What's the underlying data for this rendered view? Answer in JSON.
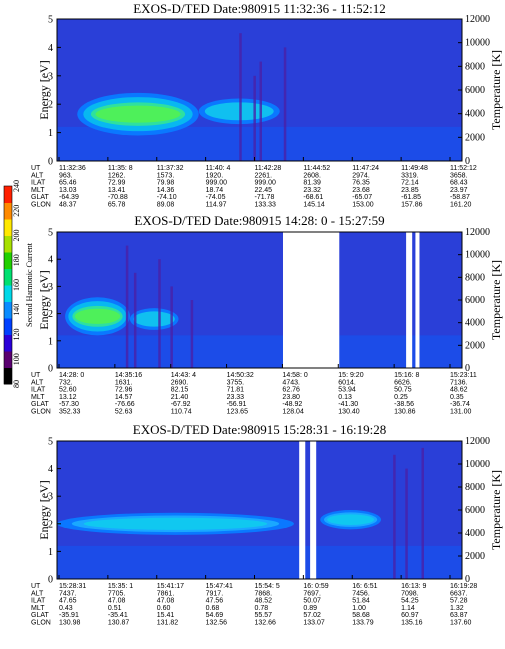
{
  "colorbar": {
    "label": "Second Harmonic Current",
    "ticks": [
      "80",
      "100",
      "120",
      "140",
      "160",
      "180",
      "200",
      "220",
      "240"
    ],
    "colors": [
      "#000000",
      "#5a0070",
      "#2a00d8",
      "#0040ff",
      "#0a8cff",
      "#00d8e8",
      "#00e070",
      "#20d000",
      "#a8e000",
      "#ffe800",
      "#ff8a00",
      "#ff2000"
    ]
  },
  "table_labels": [
    "UT",
    "ALT",
    "ILAT",
    "MLT",
    "GLAT",
    "GLON"
  ],
  "chart_data": [
    {
      "type": "heatmap",
      "title": "EXOS-D/TED Date:980915 11:32:36 - 11:52:12",
      "ylabel": "Energy [eV]",
      "y2label": "Temperature [K]",
      "ylim": [
        0,
        5
      ],
      "y2lim": [
        0,
        12000
      ],
      "yticks": [
        "0",
        "1",
        "2",
        "3",
        "4",
        "5"
      ],
      "y2ticks": [
        "0",
        "2000",
        "4000",
        "6000",
        "8000",
        "10000",
        "12000"
      ],
      "columns": [
        [
          "11:32:36",
          "963.",
          "65.46",
          "13.03",
          "-64.39",
          "48.37"
        ],
        [
          "11:35: 8",
          "1262.",
          "72.99",
          "13.41",
          "-70.88",
          "65.78"
        ],
        [
          "11:37:32",
          "1573.",
          "79.98",
          "14.36",
          "-74.10",
          "89.08"
        ],
        [
          "11:40: 4",
          "1920.",
          "999.00",
          "18.74",
          "-74.05",
          "114.97"
        ],
        [
          "11:42:28",
          "2261.",
          "999.00",
          "22.45",
          "-71.78",
          "133.33"
        ],
        [
          "11:44:52",
          "2608.",
          "81.39",
          "23.32",
          "-68.61",
          "145.14"
        ],
        [
          "11:47:24",
          "2974.",
          "76.35",
          "23.68",
          "-65.07",
          "153.00"
        ],
        [
          "11:49:48",
          "3319.",
          "72.14",
          "23.85",
          "-61.85",
          "157.86"
        ],
        [
          "11:52:12",
          "3658.",
          "68.43",
          "23.97",
          "-58.87",
          "161.20"
        ]
      ]
    },
    {
      "type": "heatmap",
      "title": "EXOS-D/TED Date:980915 14:28: 0 - 15:27:59",
      "ylabel": "Energy [eV]",
      "y2label": "Temperature [K]",
      "ylim": [
        0,
        5
      ],
      "y2lim": [
        0,
        12000
      ],
      "yticks": [
        "0",
        "1",
        "2",
        "3",
        "4",
        "5"
      ],
      "y2ticks": [
        "0",
        "2000",
        "4000",
        "6000",
        "8000",
        "10000",
        "12000"
      ],
      "columns": [
        [
          "14:28: 0",
          "732.",
          "52.60",
          "13.12",
          "-57.30",
          "352.33"
        ],
        [
          "14:35:16",
          "1631.",
          "72.96",
          "14.57",
          "-76.66",
          "52.63"
        ],
        [
          "14:43: 4",
          "2690.",
          "82.15",
          "21.40",
          "-67.92",
          "110.74"
        ],
        [
          "14:50:32",
          "3755.",
          "71.81",
          "23.33",
          "-56.91",
          "123.65"
        ],
        [
          "14:58: 0",
          "4743.",
          "62.76",
          "23.80",
          "-48.92",
          "128.04"
        ],
        [
          "15: 9:20",
          "6014.",
          "53.94",
          "0.13",
          "-41.30",
          "130.40"
        ],
        [
          "15:16: 8",
          "6626.",
          "50.75",
          "0.25",
          "-38.56",
          "130.86"
        ],
        [
          "15:23:11",
          "7136.",
          "48.62",
          "0.35",
          "-36.74",
          "131.00"
        ]
      ]
    },
    {
      "type": "heatmap",
      "title": "EXOS-D/TED Date:980915 15:28:31 - 16:19:28",
      "ylabel": "Energy [eV]",
      "y2label": "Temperature [K]",
      "ylim": [
        0,
        5
      ],
      "y2lim": [
        0,
        12000
      ],
      "yticks": [
        "0",
        "1",
        "2",
        "3",
        "4",
        "5"
      ],
      "y2ticks": [
        "0",
        "2000",
        "4000",
        "6000",
        "8000",
        "10000",
        "12000"
      ],
      "columns": [
        [
          "15:28:31",
          "7437.",
          "47.65",
          "0.43",
          "-35.91",
          "130.98"
        ],
        [
          "15:35: 1",
          "7705.",
          "47.08",
          "0.51",
          "-35.41",
          "130.87"
        ],
        [
          "15:41:17",
          "7861.",
          "47.08",
          "0.60",
          "15.41",
          "131.82"
        ],
        [
          "15:47:41",
          "7917.",
          "47.56",
          "0.68",
          "54.69",
          "132.56"
        ],
        [
          "15:54: 5",
          "7868.",
          "48.52",
          "0.78",
          "55.57",
          "132.66"
        ],
        [
          "16: 0:59",
          "7697.",
          "50.07",
          "0.89",
          "57.02",
          "133.07"
        ],
        [
          "16: 6:51",
          "7456.",
          "51.84",
          "1.00",
          "58.68",
          "133.79"
        ],
        [
          "16:13: 9",
          "7098.",
          "54.25",
          "1.14",
          "60.97",
          "135.16"
        ],
        [
          "16:19:28",
          "6637.",
          "57.28",
          "1.32",
          "63.87",
          "137.60"
        ]
      ]
    }
  ]
}
